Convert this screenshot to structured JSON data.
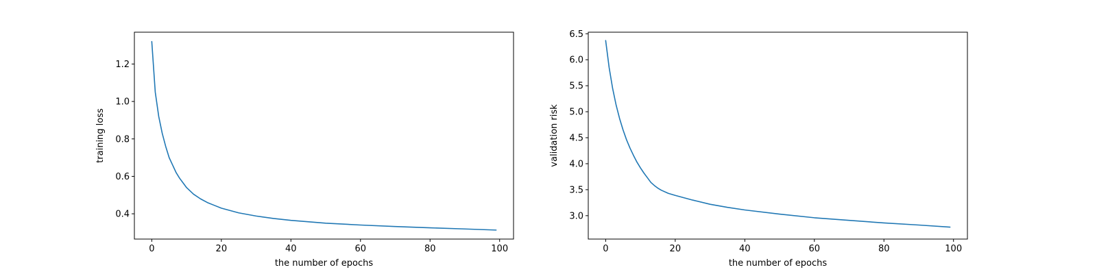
{
  "chart_data": [
    {
      "type": "line",
      "title": "",
      "xlabel": "the number of epochs",
      "ylabel": "training loss",
      "xlim": [
        -5,
        104
      ],
      "ylim": [
        0.265,
        1.37
      ],
      "grid": false,
      "xticks": [
        0,
        20,
        40,
        60,
        80,
        100
      ],
      "xtick_labels": [
        "0",
        "20",
        "40",
        "60",
        "80",
        "100"
      ],
      "yticks": [
        0.4,
        0.6,
        0.8,
        1.0,
        1.2
      ],
      "ytick_labels": [
        "0.4",
        "0.6",
        "0.8",
        "1.0",
        "1.2"
      ],
      "color": "#1f77b4",
      "series": [
        {
          "x": [
            0,
            1,
            2,
            3,
            4,
            5,
            6,
            7,
            8,
            9,
            10,
            12,
            14,
            16,
            18,
            20,
            25,
            30,
            35,
            40,
            50,
            60,
            70,
            80,
            90,
            99
          ],
          "y": [
            1.32,
            1.05,
            0.92,
            0.83,
            0.76,
            0.7,
            0.66,
            0.62,
            0.59,
            0.565,
            0.54,
            0.505,
            0.48,
            0.46,
            0.445,
            0.43,
            0.405,
            0.388,
            0.375,
            0.365,
            0.35,
            0.34,
            0.332,
            0.325,
            0.319,
            0.313
          ]
        }
      ]
    },
    {
      "type": "line",
      "title": "",
      "xlabel": "the number of epochs",
      "ylabel": "validation risk",
      "xlim": [
        -5,
        104
      ],
      "ylim": [
        2.55,
        6.53
      ],
      "grid": false,
      "xticks": [
        0,
        20,
        40,
        60,
        80,
        100
      ],
      "xtick_labels": [
        "0",
        "20",
        "40",
        "60",
        "80",
        "100"
      ],
      "yticks": [
        3.0,
        3.5,
        4.0,
        4.5,
        5.0,
        5.5,
        6.0,
        6.5
      ],
      "ytick_labels": [
        "3.0",
        "3.5",
        "4.0",
        "4.5",
        "5.0",
        "5.5",
        "6.0",
        "6.5"
      ],
      "color": "#1f77b4",
      "series": [
        {
          "x": [
            0,
            1,
            2,
            3,
            4,
            5,
            6,
            7,
            8,
            9,
            10,
            11,
            12,
            13,
            14,
            15,
            16,
            18,
            20,
            25,
            30,
            35,
            40,
            50,
            60,
            70,
            80,
            90,
            99
          ],
          "y": [
            6.37,
            5.85,
            5.45,
            5.13,
            4.87,
            4.65,
            4.46,
            4.3,
            4.16,
            4.03,
            3.92,
            3.82,
            3.73,
            3.64,
            3.58,
            3.53,
            3.49,
            3.43,
            3.39,
            3.3,
            3.22,
            3.16,
            3.11,
            3.03,
            2.96,
            2.91,
            2.86,
            2.82,
            2.78
          ]
        }
      ]
    }
  ]
}
